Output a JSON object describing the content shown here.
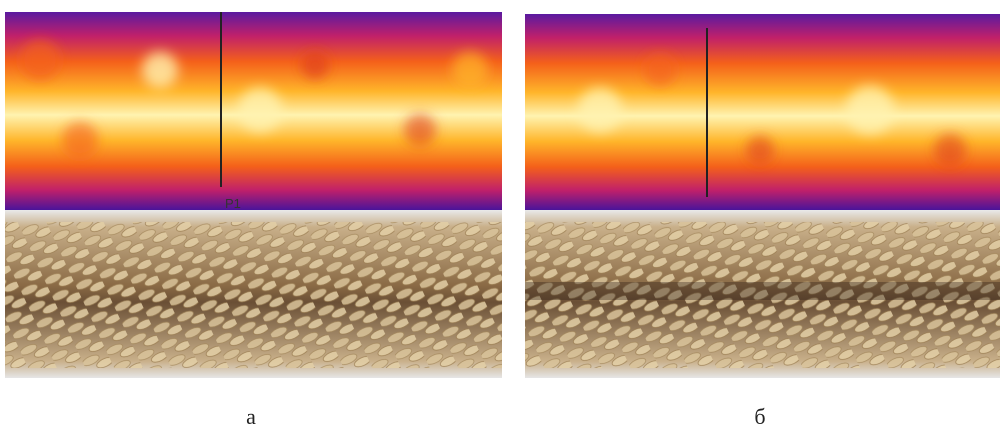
{
  "panels": [
    {
      "label": "а",
      "marker": "P1"
    },
    {
      "label": "б"
    }
  ]
}
